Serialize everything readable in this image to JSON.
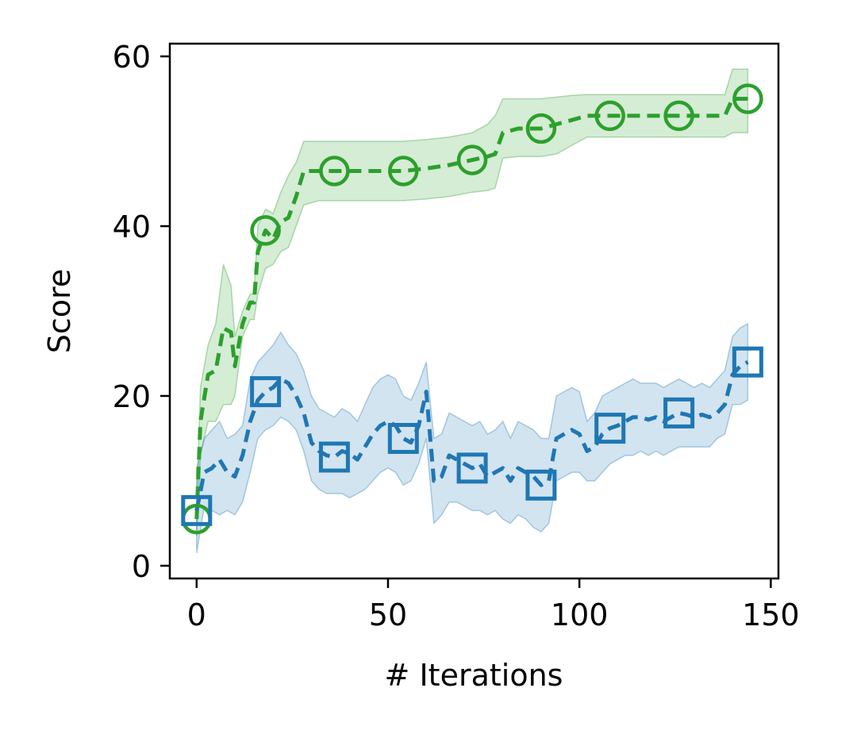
{
  "chart_data": {
    "type": "line",
    "title": "",
    "xlabel": "# Iterations",
    "ylabel": "Score",
    "xlim": [
      -7,
      152
    ],
    "ylim": [
      -1.5,
      61.5
    ],
    "xticks": [
      0,
      50,
      100,
      150
    ],
    "yticks": [
      0,
      20,
      40,
      60
    ],
    "grid": false,
    "legend": "none",
    "series": [
      {
        "color": "#2ca02c",
        "marker": "circle",
        "marker_x": [
          0,
          18,
          36,
          54,
          72,
          90,
          108,
          126,
          144
        ],
        "x": [
          0,
          1,
          3,
          5,
          7,
          9,
          10,
          12,
          14,
          15,
          16,
          18,
          20,
          22,
          24,
          26,
          28,
          32,
          36,
          40,
          45,
          50,
          54,
          60,
          66,
          72,
          76,
          78,
          80,
          84,
          88,
          90,
          94,
          98,
          102,
          108,
          114,
          120,
          126,
          132,
          138,
          140,
          144
        ],
        "y": [
          5.5,
          17,
          22.5,
          23,
          28,
          27.5,
          23.5,
          28.5,
          31,
          31,
          37,
          39.5,
          38.5,
          40.5,
          41,
          43.5,
          46.5,
          46.5,
          46.5,
          46.5,
          46.5,
          46.5,
          46.5,
          46.8,
          47.2,
          47.8,
          48.2,
          48.5,
          51,
          51.5,
          51.5,
          51.5,
          52,
          52.5,
          53,
          53,
          53,
          53,
          53,
          53,
          53,
          55,
          55
        ],
        "lower": [
          3.5,
          13,
          17,
          17,
          19,
          19,
          20,
          27,
          29,
          29,
          32,
          35,
          35.5,
          37,
          37.5,
          40,
          42.5,
          43,
          43,
          43,
          43,
          43,
          43,
          43.2,
          43.5,
          44,
          44.2,
          44.5,
          48,
          48.2,
          48.2,
          48.2,
          48.5,
          49.5,
          50.5,
          50.5,
          50.5,
          50.5,
          50.5,
          50.5,
          50.5,
          51,
          51
        ],
        "upper": [
          7,
          21,
          26,
          28.5,
          35.5,
          33,
          27,
          30,
          32,
          32,
          40,
          42,
          41.5,
          44,
          46,
          47.5,
          50,
          50,
          50,
          50,
          50,
          50,
          50,
          50.2,
          50.5,
          51,
          52,
          53,
          55,
          55,
          55,
          55,
          55.2,
          55.4,
          55.5,
          55.5,
          55.5,
          55.5,
          55.5,
          55.5,
          55.5,
          58.5,
          58.5
        ]
      },
      {
        "color": "#1f77b4",
        "marker": "square",
        "marker_x": [
          0,
          18,
          36,
          54,
          72,
          90,
          108,
          126,
          144
        ],
        "x": [
          0,
          2,
          4,
          6,
          8,
          10,
          12,
          14,
          16,
          18,
          20,
          22,
          24,
          26,
          28,
          30,
          32,
          34,
          36,
          38,
          40,
          42,
          44,
          46,
          48,
          50,
          52,
          54,
          56,
          58,
          60,
          62,
          64,
          66,
          68,
          70,
          72,
          74,
          76,
          78,
          80,
          82,
          84,
          86,
          88,
          90,
          92,
          94,
          96,
          98,
          100,
          102,
          104,
          106,
          108,
          110,
          112,
          114,
          116,
          118,
          120,
          122,
          124,
          126,
          128,
          130,
          132,
          134,
          136,
          138,
          140,
          142,
          144
        ],
        "y": [
          6.5,
          11,
          11.5,
          12.5,
          11,
          10.5,
          13,
          17,
          19.5,
          20.5,
          21,
          22,
          21.5,
          20,
          18,
          14.5,
          13.5,
          13,
          12.8,
          13.5,
          13.2,
          12.5,
          14,
          15.5,
          16.5,
          17,
          16.5,
          15,
          14.5,
          16.5,
          20.5,
          10,
          10.5,
          13,
          12.5,
          12,
          11.5,
          12,
          10.5,
          11,
          11.5,
          10,
          11.5,
          11,
          10.5,
          9.5,
          10,
          15,
          15.5,
          16,
          15.5,
          13.5,
          14,
          15.5,
          16.2,
          16.5,
          17,
          17.5,
          17.5,
          17.2,
          17.5,
          17,
          17.5,
          18,
          17.8,
          17.5,
          17.8,
          17.5,
          18,
          19,
          22.5,
          23.5,
          24
        ]
      }
    ],
    "blue_band": {
      "x": [
        0,
        2,
        4,
        6,
        8,
        10,
        12,
        14,
        16,
        18,
        20,
        22,
        24,
        26,
        28,
        30,
        32,
        34,
        36,
        38,
        40,
        42,
        44,
        46,
        48,
        50,
        52,
        54,
        56,
        58,
        60,
        62,
        64,
        66,
        68,
        70,
        72,
        74,
        76,
        78,
        80,
        82,
        84,
        86,
        88,
        90,
        92,
        94,
        96,
        98,
        100,
        102,
        104,
        106,
        108,
        110,
        112,
        114,
        116,
        118,
        120,
        122,
        124,
        126,
        128,
        130,
        132,
        134,
        136,
        138,
        140,
        142,
        144
      ],
      "lower": [
        1.5,
        7,
        6.5,
        6,
        6.5,
        6,
        7.5,
        11,
        15,
        16,
        16.5,
        17.5,
        17,
        16,
        13.5,
        10,
        9,
        8.5,
        8.5,
        8.5,
        8,
        8.5,
        9,
        10,
        11,
        11.5,
        11,
        9.5,
        10,
        12,
        15,
        5,
        6,
        7.5,
        7.5,
        7,
        6.5,
        6.5,
        6,
        6.5,
        5.5,
        5,
        6,
        5.5,
        4.5,
        4,
        5,
        10,
        10.5,
        11,
        11,
        10,
        10,
        11,
        12,
        12.5,
        13,
        13,
        13.5,
        13,
        13.5,
        13,
        13.5,
        14,
        14,
        14,
        14,
        14,
        15,
        15.5,
        19,
        19,
        19.5
      ],
      "upper": [
        11.5,
        15,
        16,
        17,
        15,
        15.5,
        16.5,
        22,
        24,
        25,
        26,
        27.5,
        26,
        25,
        23,
        20,
        18.5,
        18,
        17.5,
        18.5,
        18,
        17,
        19,
        21,
        22,
        22.5,
        22,
        20,
        19.5,
        21.5,
        24,
        15,
        15.5,
        18,
        17.5,
        17,
        16.5,
        17,
        15.5,
        16,
        17,
        15,
        17,
        16.5,
        16,
        15,
        15,
        20,
        20.5,
        21,
        20.5,
        17,
        18,
        20,
        20.5,
        21,
        21.5,
        22,
        21.5,
        21.5,
        21.5,
        21,
        21.5,
        22,
        21.5,
        21,
        21.5,
        21,
        22,
        23,
        27,
        28,
        28.5
      ]
    },
    "colors": {
      "green": "#2ca02c",
      "blue": "#1f77b4"
    }
  }
}
